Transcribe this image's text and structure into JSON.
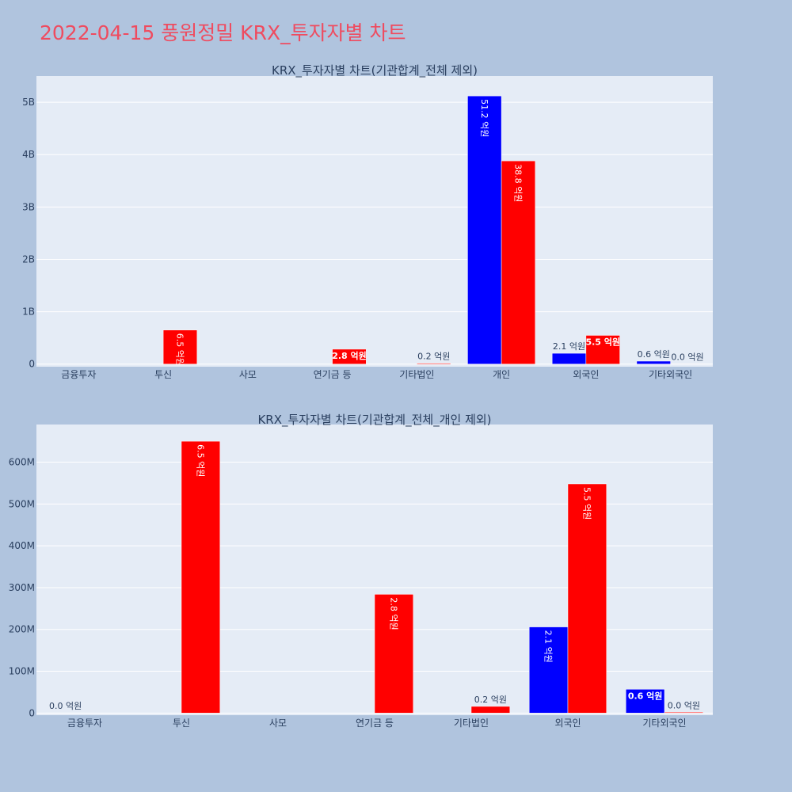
{
  "page": {
    "title": "2022-04-15 풍원정밀 KRX_투자자별 차트",
    "colors": {
      "background": "#b0c4de",
      "plot_bg": "#e5ecf6",
      "title": "#ef4b5f",
      "buy": "#0000ff",
      "sell": "#ff0000"
    }
  },
  "chart_data": [
    {
      "type": "bar",
      "title": "KRX_투자자별 차트(기관합계_전체 제외)",
      "categories": [
        "금융투자",
        "투신",
        "사모",
        "연기금 등",
        "기타법인",
        "개인",
        "외국인",
        "기타외국인"
      ],
      "ylim": [
        -0.05,
        5.5
      ],
      "yticks": [
        0,
        1,
        2,
        3,
        4,
        5
      ],
      "yticklabels": [
        "0",
        "1B",
        "2B",
        "3B",
        "4B",
        "5B"
      ],
      "grid": true,
      "series": [
        {
          "color": "#0000ff",
          "values": [
            0,
            0,
            0,
            0,
            0.0,
            5.12,
            0.206,
            0.056
          ],
          "labels": [
            "",
            "",
            "",
            "",
            "",
            "51.2 억원",
            "2.1 억원",
            "0.6 억원"
          ],
          "label_pos": [
            "none",
            "none",
            "none",
            "none",
            "none",
            "inside-vertical",
            "outside",
            "outside"
          ]
        },
        {
          "color": "#ff0000",
          "values": [
            0,
            0.65,
            0,
            0.284,
            0.016,
            3.88,
            0.548,
            0.002
          ],
          "labels": [
            "",
            "6.5 억원",
            "",
            "2.8 억원",
            "0.2 억원",
            "38.8 억원",
            "5.5 억원",
            "0.0 억원"
          ],
          "label_pos": [
            "none",
            "inside-vertical",
            "none",
            "inside",
            "outside",
            "inside-vertical",
            "inside",
            "outside"
          ]
        }
      ]
    },
    {
      "type": "bar",
      "title": "KRX_투자자별 차트(기관합계_전체_개인 제외)",
      "categories": [
        "금융투자",
        "투신",
        "사모",
        "연기금 등",
        "기타법인",
        "외국인",
        "기타외국인"
      ],
      "ylim": [
        -5,
        690
      ],
      "yticks": [
        0,
        100,
        200,
        300,
        400,
        500,
        600
      ],
      "yticklabels": [
        "0",
        "100M",
        "200M",
        "300M",
        "400M",
        "500M",
        "600M"
      ],
      "grid": true,
      "series": [
        {
          "color": "#0000ff",
          "values": [
            0.3,
            0,
            0,
            0,
            0,
            206,
            57
          ],
          "labels": [
            "0.0 억원",
            "",
            "",
            "",
            "",
            "2.1 억원",
            "0.6 억원"
          ],
          "label_pos": [
            "outside",
            "none",
            "none",
            "none",
            "none",
            "inside-vertical",
            "inside"
          ]
        },
        {
          "color": "#ff0000",
          "values": [
            0,
            650,
            0,
            284,
            16,
            548,
            2
          ],
          "labels": [
            "",
            "6.5 억원",
            "",
            "2.8 억원",
            "0.2 억원",
            "5.5 억원",
            "0.0 억원"
          ],
          "label_pos": [
            "none",
            "inside-vertical",
            "none",
            "inside-vertical",
            "outside",
            "inside-vertical",
            "outside"
          ]
        }
      ]
    }
  ]
}
